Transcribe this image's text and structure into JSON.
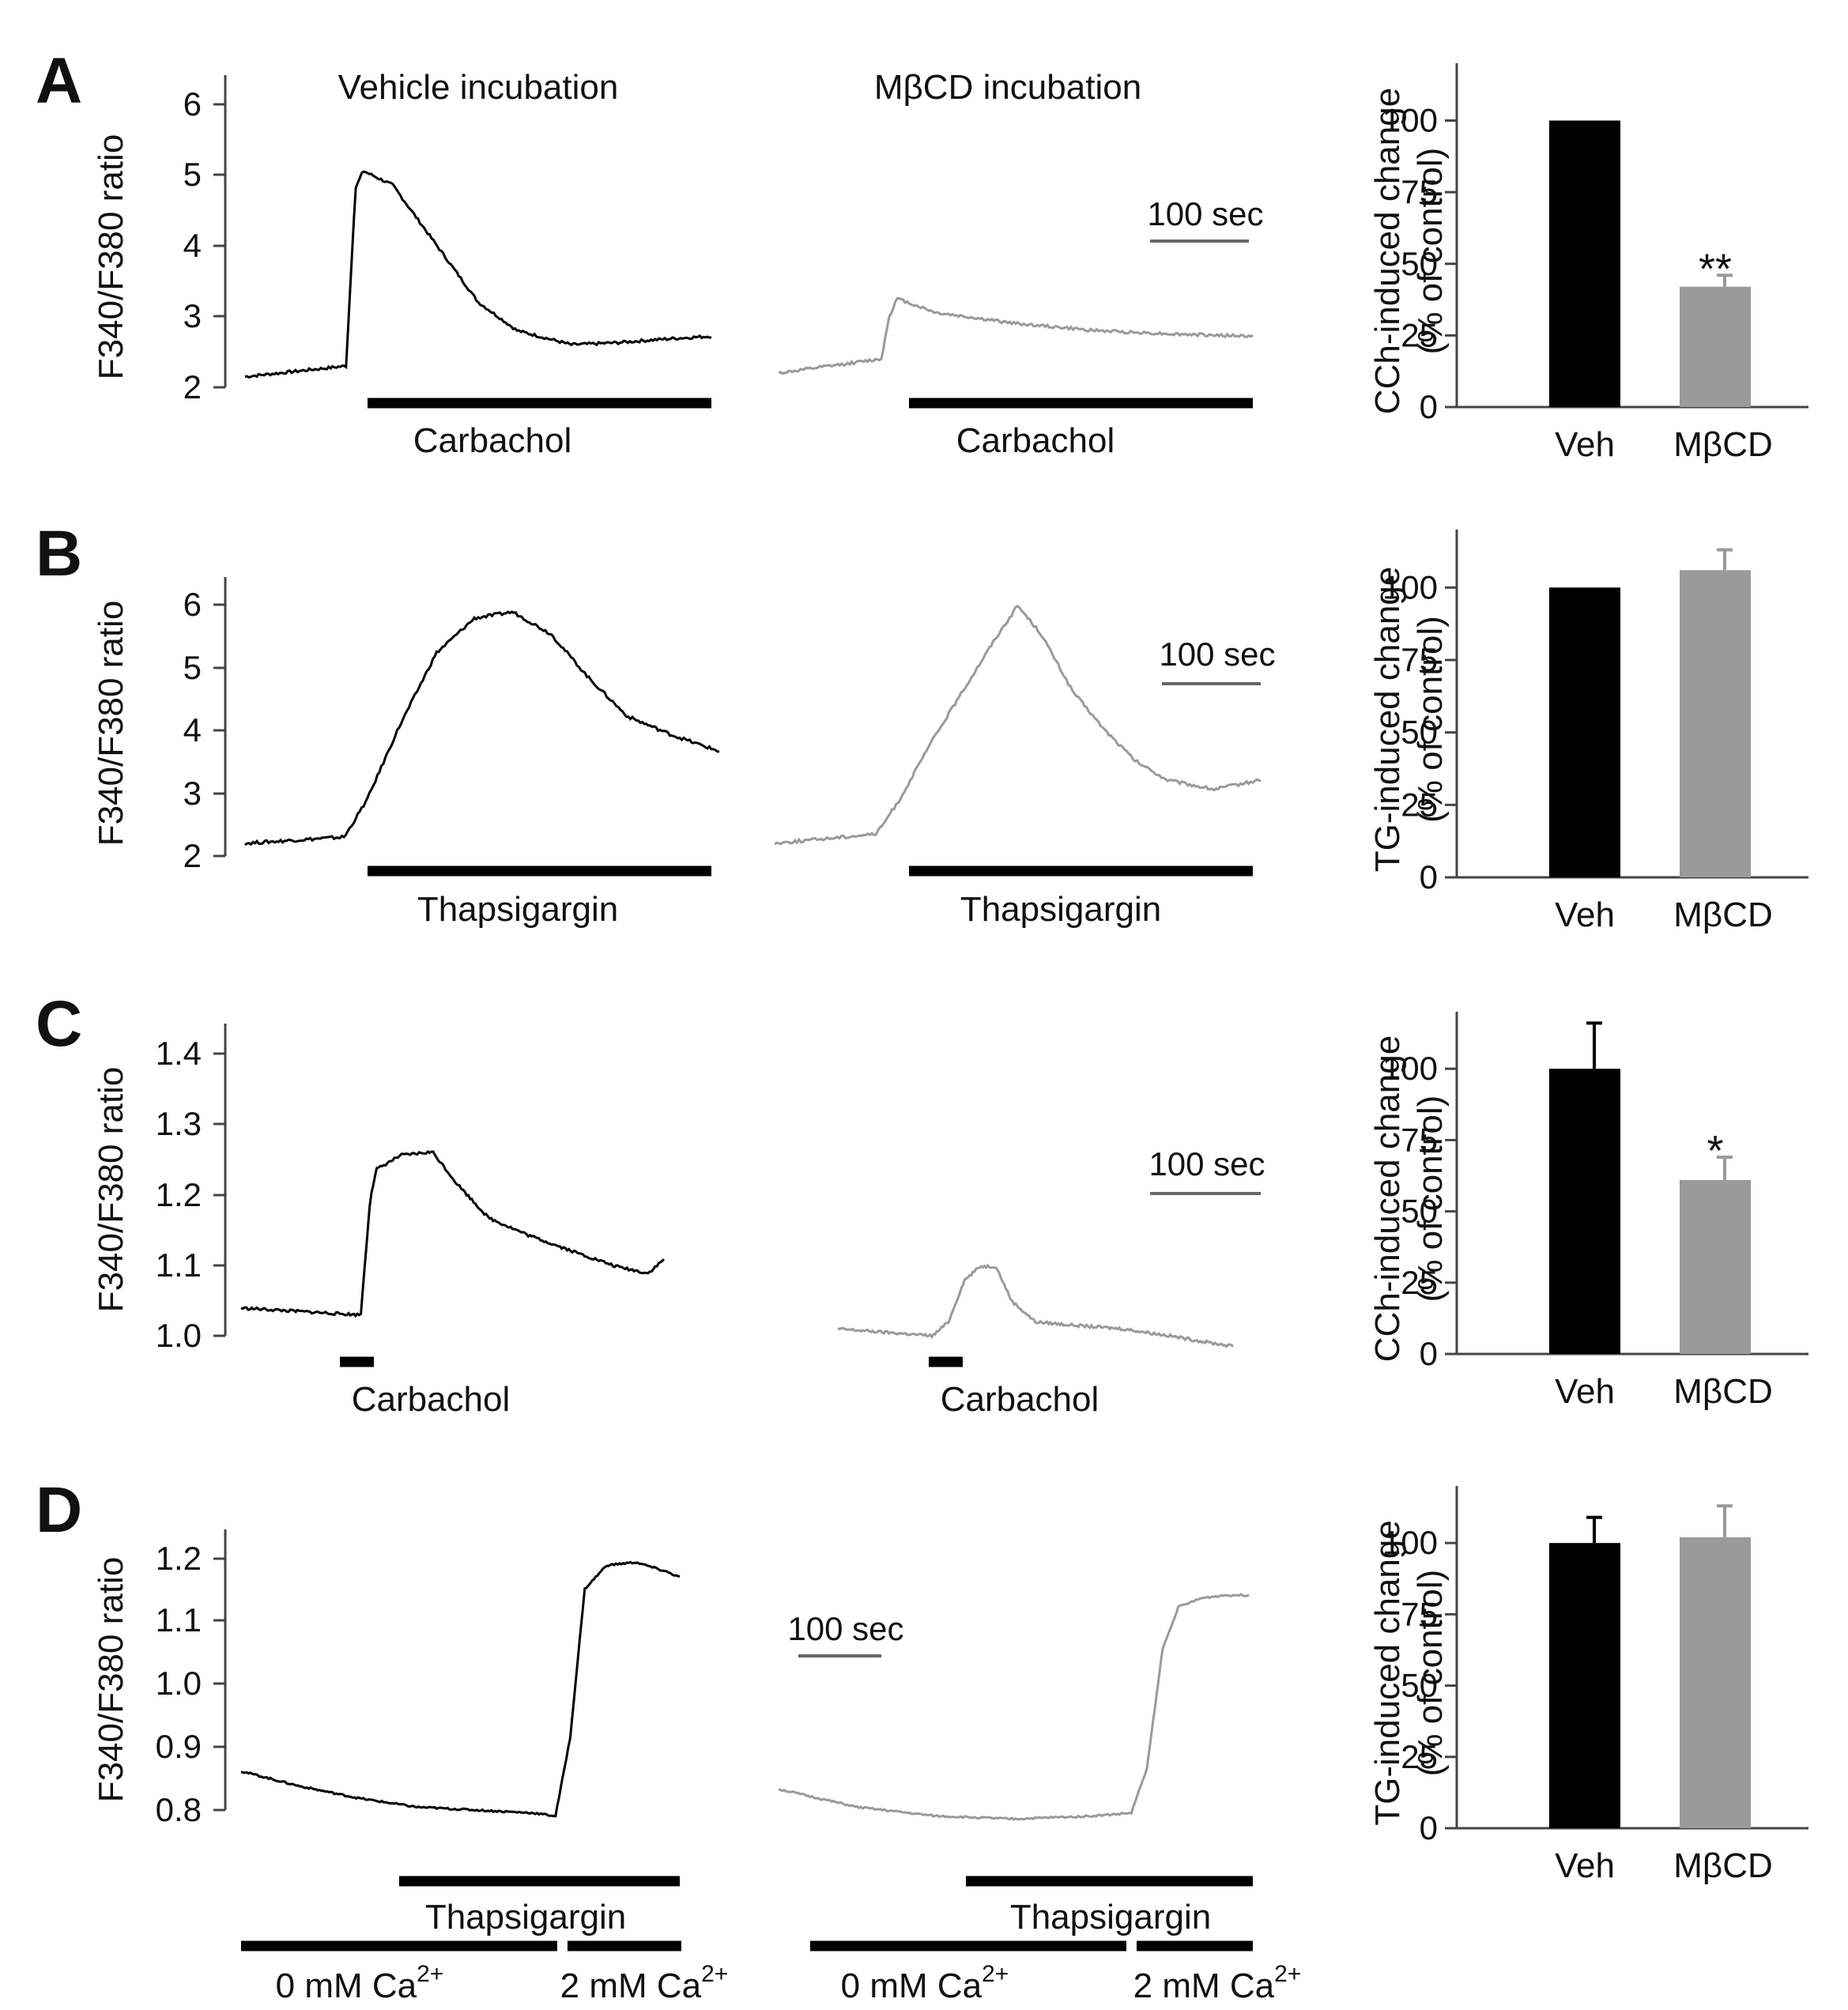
{
  "figure": {
    "columns": {
      "left": "Vehicle incubation",
      "right": "MβCD incubation"
    },
    "scalebar_label": "100 sec",
    "colors": {
      "vehicle": "#000000",
      "mbcd": "#9a9a9a",
      "axis": "#444444"
    }
  },
  "chart_data": [
    {
      "panel": "A",
      "type": "line",
      "ylabel": "F340/F380 ratio",
      "yticks": [
        "2",
        "3",
        "4",
        "5",
        "6"
      ],
      "ylim": [
        2,
        6.4
      ],
      "time_scale": "100 sec",
      "stimulus": {
        "label": "Carbachol"
      },
      "series": [
        {
          "name": "Vehicle incubation",
          "color": "#000000",
          "t": [
            0,
            130,
            142,
            152,
            190,
            240,
            300,
            350,
            420,
            480,
            540,
            600
          ],
          "y": [
            2.15,
            2.3,
            4.8,
            5.05,
            4.85,
            4.1,
            3.2,
            2.8,
            2.6,
            2.63,
            2.68,
            2.72
          ]
        },
        {
          "name": "MβCD incubation",
          "color": "#9a9a9a",
          "t": [
            0,
            130,
            140,
            150,
            200,
            300,
            400,
            500,
            600
          ],
          "y": [
            2.2,
            2.4,
            3.0,
            3.25,
            3.05,
            2.9,
            2.8,
            2.75,
            2.72
          ]
        }
      ],
      "bar": {
        "type": "bar",
        "ylabel": "CCh-induced change\n(% of control)",
        "yticks": [
          "0",
          "25",
          "50",
          "75",
          "100"
        ],
        "ylim": [
          0,
          120
        ],
        "categories": [
          "Veh",
          "MβCD"
        ],
        "values": [
          100,
          42
        ],
        "errors": [
          0,
          4
        ],
        "significance": [
          "",
          "**"
        ]
      }
    },
    {
      "panel": "B",
      "type": "line",
      "ylabel": "F340/F380 ratio",
      "yticks": [
        "2",
        "3",
        "4",
        "5",
        "6"
      ],
      "ylim": [
        2,
        6.4
      ],
      "time_scale": "100 sec",
      "stimulus": {
        "label": "Thapsigargin"
      },
      "series": [
        {
          "name": "Vehicle incubation",
          "color": "#000000",
          "t": [
            0,
            130,
            160,
            200,
            250,
            300,
            350,
            400,
            450,
            500,
            560,
            620
          ],
          "y": [
            2.2,
            2.3,
            2.9,
            4.0,
            5.2,
            5.75,
            5.85,
            5.5,
            4.8,
            4.2,
            3.9,
            3.65
          ]
        },
        {
          "name": "MβCD incubation",
          "color": "#9a9a9a",
          "t": [
            0,
            130,
            160,
            200,
            240,
            280,
            310,
            340,
            380,
            420,
            460,
            500,
            560,
            620
          ],
          "y": [
            2.2,
            2.35,
            2.9,
            3.8,
            4.6,
            5.4,
            5.95,
            5.5,
            4.6,
            4.0,
            3.5,
            3.2,
            3.05,
            3.2
          ]
        }
      ],
      "bar": {
        "type": "bar",
        "ylabel": "TG-induced change\n(% of control)",
        "yticks": [
          "0",
          "25",
          "50",
          "75",
          "100"
        ],
        "ylim": [
          0,
          120
        ],
        "categories": [
          "Veh",
          "MβCD"
        ],
        "values": [
          100,
          106
        ],
        "errors": [
          0,
          7
        ],
        "significance": [
          "",
          ""
        ]
      }
    },
    {
      "panel": "C",
      "type": "line",
      "ylabel": "F340/F380 ratio",
      "yticks": [
        "1.0",
        "1.1",
        "1.2",
        "1.3",
        "1.4"
      ],
      "ylim": [
        1.0,
        1.45
      ],
      "time_scale": "100 sec",
      "stimulus": {
        "label": "Carbachol"
      },
      "series": [
        {
          "name": "Vehicle incubation",
          "color": "#000000",
          "t": [
            0,
            150,
            162,
            170,
            200,
            240,
            270,
            310,
            360,
            420,
            470,
            510,
            530
          ],
          "y": [
            1.04,
            1.03,
            1.2,
            1.24,
            1.26,
            1.265,
            1.22,
            1.17,
            1.145,
            1.12,
            1.1,
            1.09,
            1.11
          ]
        },
        {
          "name": "MβCD incubation",
          "color": "#9a9a9a",
          "t": [
            0,
            120,
            140,
            160,
            180,
            200,
            220,
            250,
            300,
            360,
            420,
            470,
            500
          ],
          "y": [
            1.01,
            1.0,
            1.02,
            1.08,
            1.1,
            1.1,
            1.05,
            1.02,
            1.015,
            1.01,
            1.0,
            0.99,
            0.985
          ]
        }
      ],
      "bar": {
        "type": "bar",
        "ylabel": "CCh-induced change\n(% of control)",
        "yticks": [
          "0",
          "25",
          "50",
          "75",
          "100"
        ],
        "ylim": [
          0,
          120
        ],
        "categories": [
          "Veh",
          "MβCD"
        ],
        "values": [
          100,
          61
        ],
        "errors": [
          16,
          8
        ],
        "significance": [
          "",
          "*"
        ]
      }
    },
    {
      "panel": "D",
      "type": "line",
      "ylabel": "F340/F380 ratio",
      "yticks": [
        "0.8",
        "0.9",
        "1.0",
        "1.1",
        "1.2"
      ],
      "ylim": [
        0.78,
        1.25
      ],
      "time_scale": "100 sec",
      "stimuli": [
        {
          "label": "Thapsigargin"
        },
        {
          "label": "0 mM Ca",
          "superscript": "2+"
        },
        {
          "label": "2 mM Ca",
          "superscript": "2+"
        }
      ],
      "series": [
        {
          "name": "Vehicle incubation",
          "color": "#000000",
          "t": [
            0,
            80,
            160,
            240,
            320,
            400,
            430,
            450,
            470,
            500,
            540,
            580,
            600
          ],
          "y": [
            0.845,
            0.82,
            0.8,
            0.785,
            0.78,
            0.775,
            0.77,
            0.9,
            1.15,
            1.19,
            1.195,
            1.18,
            1.17
          ]
        },
        {
          "name": "MβCD incubation",
          "color": "#9a9a9a",
          "t": [
            0,
            100,
            200,
            300,
            400,
            450,
            470,
            490,
            510,
            540,
            570,
            600
          ],
          "y": [
            0.815,
            0.785,
            0.77,
            0.765,
            0.77,
            0.775,
            0.85,
            1.05,
            1.12,
            1.135,
            1.14,
            1.14
          ]
        }
      ],
      "bar": {
        "type": "bar",
        "ylabel": "TG-induced change\n(% of control)",
        "yticks": [
          "0",
          "25",
          "50",
          "75",
          "100"
        ],
        "ylim": [
          0,
          120
        ],
        "categories": [
          "Veh",
          "MβCD"
        ],
        "values": [
          100,
          102
        ],
        "errors": [
          9,
          11
        ],
        "significance": [
          "",
          ""
        ]
      }
    }
  ]
}
